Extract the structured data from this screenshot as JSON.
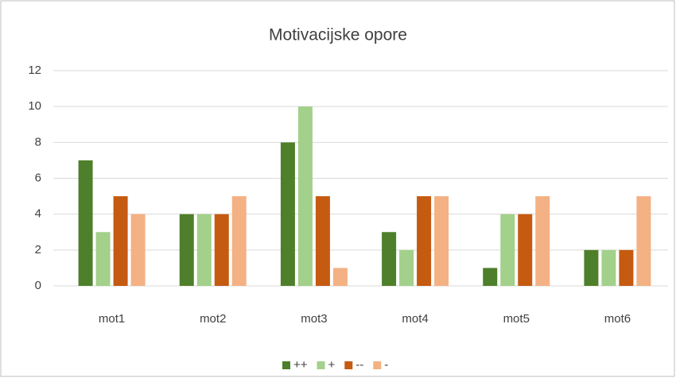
{
  "chart_data": {
    "type": "bar",
    "title": "Motivacijske opore",
    "categories": [
      "mot1",
      "mot2",
      "mot3",
      "mot4",
      "mot5",
      "mot6"
    ],
    "series": [
      {
        "name": "++",
        "color": "#4e7f2a",
        "values": [
          7,
          4,
          8,
          3,
          1,
          2
        ]
      },
      {
        "name": "+",
        "color": "#a3d08a",
        "values": [
          3,
          4,
          10,
          2,
          4,
          2
        ]
      },
      {
        "name": "--",
        "color": "#c55a11",
        "values": [
          5,
          4,
          5,
          5,
          4,
          2
        ]
      },
      {
        "name": "-",
        "color": "#f4b183",
        "values": [
          4,
          5,
          1,
          5,
          5,
          5
        ]
      }
    ],
    "ylim": [
      0,
      12
    ],
    "yticks": [
      0,
      2,
      4,
      6,
      8,
      10,
      12
    ],
    "grid": true,
    "legend": "bottom"
  }
}
